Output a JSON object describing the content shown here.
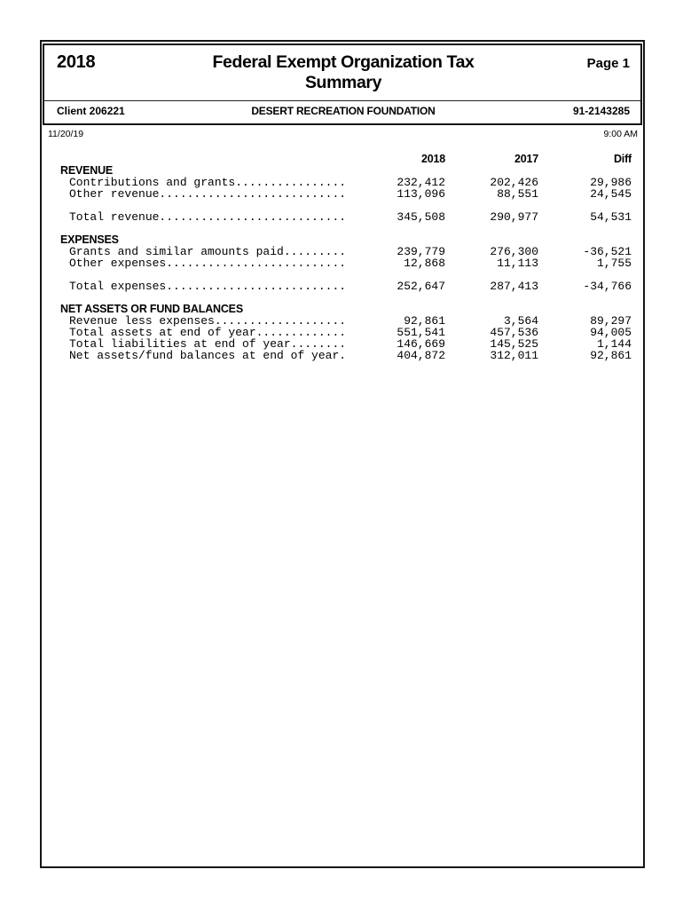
{
  "header": {
    "year": "2018",
    "title": "Federal Exempt Organization Tax Summary",
    "page_label": "Page 1",
    "client": "Client 206221",
    "organization": "DESERT RECREATION FOUNDATION",
    "ein": "91-2143285",
    "date": "11/20/19",
    "time": "9:00 AM"
  },
  "table": {
    "columns": [
      "2018",
      "2017",
      "Diff"
    ],
    "leader_char": ".",
    "label_pad_length": 40,
    "sections": [
      {
        "heading": "REVENUE",
        "rows": [
          {
            "label": "Contributions and grants",
            "values": [
              "232,412",
              "202,426",
              "29,986"
            ]
          },
          {
            "label": "Other revenue",
            "values": [
              "113,096",
              "88,551",
              "24,545"
            ]
          }
        ],
        "total": {
          "label": "Total revenue",
          "values": [
            "345,508",
            "290,977",
            "54,531"
          ]
        }
      },
      {
        "heading": "EXPENSES",
        "rows": [
          {
            "label": "Grants and similar amounts paid",
            "values": [
              "239,779",
              "276,300",
              "-36,521"
            ]
          },
          {
            "label": "Other expenses",
            "values": [
              "12,868",
              "11,113",
              "1,755"
            ]
          }
        ],
        "total": {
          "label": "Total expenses",
          "values": [
            "252,647",
            "287,413",
            "-34,766"
          ]
        }
      },
      {
        "heading": "NET ASSETS OR FUND BALANCES",
        "rows": [
          {
            "label": "Revenue less expenses",
            "values": [
              "92,861",
              "3,564",
              "89,297"
            ]
          },
          {
            "label": "Total assets at end of year",
            "values": [
              "551,541",
              "457,536",
              "94,005"
            ]
          },
          {
            "label": "Total liabilities at end of year",
            "values": [
              "146,669",
              "145,525",
              "1,144"
            ]
          },
          {
            "label": "Net assets/fund balances at end of year",
            "values": [
              "404,872",
              "312,011",
              "92,861"
            ]
          }
        ],
        "total": null
      }
    ]
  }
}
